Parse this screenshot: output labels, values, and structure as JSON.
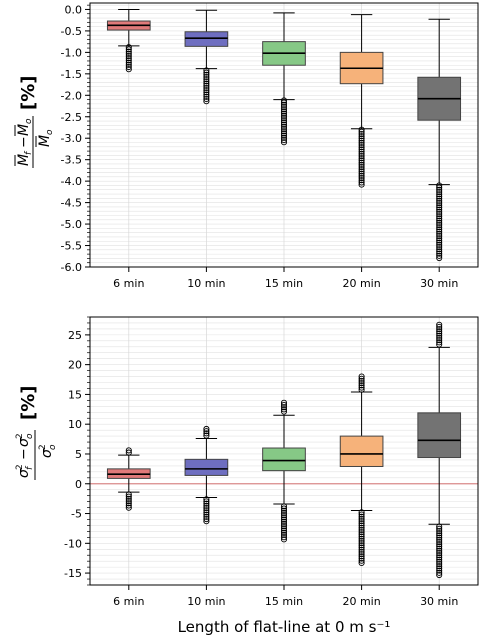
{
  "chart_data": [
    {
      "type": "box",
      "categories": [
        "6 min",
        "10 min",
        "15 min",
        "20 min",
        "30 min"
      ],
      "colors": [
        "#e07a7a",
        "#6e6ec0",
        "#86c886",
        "#f6b27a",
        "#737373"
      ],
      "ylim": [
        -6.0,
        0.15
      ],
      "yticks": [
        "0.0",
        "-0.5",
        "-1.0",
        "-1.5",
        "-2.0",
        "-2.5",
        "-3.0",
        "-3.5",
        "-4.0",
        "-4.5",
        "-5.0",
        "-5.5",
        "-6.0"
      ],
      "ylabel_main": "M̄f − M̄o / M̄o",
      "ylabel_unit": "[%]",
      "grid": true,
      "boxes": [
        {
          "q1": -0.48,
          "median": -0.37,
          "q3": -0.27,
          "whislo": -0.85,
          "whishi": 0.0,
          "fliers_low": [
            -0.88,
            -1.4
          ],
          "fliers_high": []
        },
        {
          "q1": -0.86,
          "median": -0.67,
          "q3": -0.52,
          "whislo": -1.38,
          "whishi": -0.02,
          "fliers_low": [
            -1.42,
            -2.15
          ],
          "fliers_high": []
        },
        {
          "q1": -1.3,
          "median": -1.02,
          "q3": -0.75,
          "whislo": -2.1,
          "whishi": -0.08,
          "fliers_low": [
            -2.12,
            -3.1
          ],
          "fliers_high": []
        },
        {
          "q1": -1.73,
          "median": -1.37,
          "q3": -1.0,
          "whislo": -2.78,
          "whishi": -0.12,
          "fliers_low": [
            -2.8,
            -4.12
          ],
          "fliers_high": []
        },
        {
          "q1": -2.58,
          "median": -2.08,
          "q3": -1.58,
          "whislo": -4.08,
          "whishi": -0.23,
          "fliers_low": [
            -4.1,
            -5.82
          ],
          "fliers_high": []
        }
      ]
    },
    {
      "type": "box",
      "categories": [
        "6 min",
        "10 min",
        "15 min",
        "20 min",
        "30 min"
      ],
      "colors": [
        "#e07a7a",
        "#6e6ec0",
        "#86c886",
        "#f6b27a",
        "#737373"
      ],
      "ylim": [
        -17,
        28
      ],
      "yticks": [
        "25",
        "20",
        "15",
        "10",
        "5",
        "0",
        "-5",
        "-10",
        "-15"
      ],
      "ylabel_main": "σf² − σo² / σo²",
      "ylabel_unit": "[%]",
      "reference_line": 0,
      "grid": true,
      "boxes": [
        {
          "q1": 0.9,
          "median": 1.6,
          "q3": 2.5,
          "whislo": -1.4,
          "whishi": 4.8,
          "fliers_low": [
            -1.8,
            -4.2
          ],
          "fliers_high": [
            5.0,
            5.6
          ]
        },
        {
          "q1": 1.4,
          "median": 2.5,
          "q3": 4.1,
          "whislo": -2.3,
          "whishi": 7.6,
          "fliers_low": [
            -2.6,
            -6.5
          ],
          "fliers_high": [
            7.9,
            9.2
          ]
        },
        {
          "q1": 2.2,
          "median": 3.9,
          "q3": 6.0,
          "whislo": -3.4,
          "whishi": 11.5,
          "fliers_low": [
            -3.8,
            -9.6
          ],
          "fliers_high": [
            11.8,
            13.6
          ]
        },
        {
          "q1": 2.9,
          "median": 5.0,
          "q3": 8.0,
          "whislo": -4.5,
          "whishi": 15.4,
          "fliers_low": [
            -4.8,
            -13.4
          ],
          "fliers_high": [
            15.7,
            18.0
          ]
        },
        {
          "q1": 4.4,
          "median": 7.3,
          "q3": 11.9,
          "whislo": -6.8,
          "whishi": 22.9,
          "fliers_low": [
            -7.2,
            -15.5
          ],
          "fliers_high": [
            23.2,
            26.7
          ]
        }
      ]
    }
  ],
  "xlabel": "Length of flat-line at 0 m s⁻¹"
}
